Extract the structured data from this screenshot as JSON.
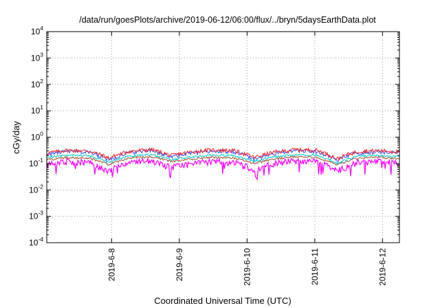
{
  "chart_data": {
    "type": "line",
    "title": "/data/run/goesPlots/archive/2019-06-12/06:00/flux/../bryn/5daysEarthData.plot",
    "xlabel": "Coordinated Universal Time (UTC)",
    "ylabel": "cGy/day",
    "yscale": "log",
    "ylim": [
      0.0001,
      10000
    ],
    "y_ticks": [
      {
        "base": "10",
        "exp": "4"
      },
      {
        "base": "10",
        "exp": "3"
      },
      {
        "base": "10",
        "exp": "2"
      },
      {
        "base": "10",
        "exp": "1"
      },
      {
        "base": "10",
        "exp": "0"
      },
      {
        "base": "10",
        "exp": "-1"
      },
      {
        "base": "10",
        "exp": "-2"
      },
      {
        "base": "10",
        "exp": "-3"
      },
      {
        "base": "10",
        "exp": "-4"
      }
    ],
    "xlim": [
      "2019-06-07 01:00",
      "2019-06-12 06:00"
    ],
    "x_ticks": [
      "2019-6-8",
      "2019-6-9",
      "2019-6-10",
      "2019-6-11",
      "2019-6-12"
    ],
    "grid": true,
    "legend": "none",
    "series": [
      {
        "color": "#ff2020",
        "base_values": [
          0.25,
          0.32,
          0.3,
          0.16,
          0.29,
          0.34,
          0.2,
          0.28,
          0.33,
          0.31,
          0.17,
          0.27,
          0.34,
          0.32,
          0.15,
          0.29,
          0.31,
          0.28
        ]
      },
      {
        "color": "#3050ff",
        "base_values": [
          0.22,
          0.29,
          0.27,
          0.14,
          0.26,
          0.31,
          0.18,
          0.25,
          0.3,
          0.28,
          0.15,
          0.24,
          0.31,
          0.29,
          0.13,
          0.26,
          0.28,
          0.25
        ]
      },
      {
        "color": "#00c8c8",
        "base_values": [
          0.17,
          0.21,
          0.2,
          0.11,
          0.19,
          0.22,
          0.14,
          0.18,
          0.21,
          0.2,
          0.12,
          0.18,
          0.22,
          0.21,
          0.1,
          0.19,
          0.2,
          0.18
        ]
      },
      {
        "color": "#a05030",
        "base_values": [
          0.14,
          0.17,
          0.16,
          0.09,
          0.16,
          0.18,
          0.12,
          0.15,
          0.17,
          0.16,
          0.1,
          0.15,
          0.18,
          0.17,
          0.09,
          0.16,
          0.17,
          0.15
        ]
      },
      {
        "color": "#ff00ff",
        "base_values": [
          0.09,
          0.12,
          0.11,
          0.05,
          0.11,
          0.13,
          0.07,
          0.1,
          0.12,
          0.11,
          0.06,
          0.1,
          0.13,
          0.12,
          0.05,
          0.11,
          0.12,
          0.1
        ]
      }
    ]
  }
}
